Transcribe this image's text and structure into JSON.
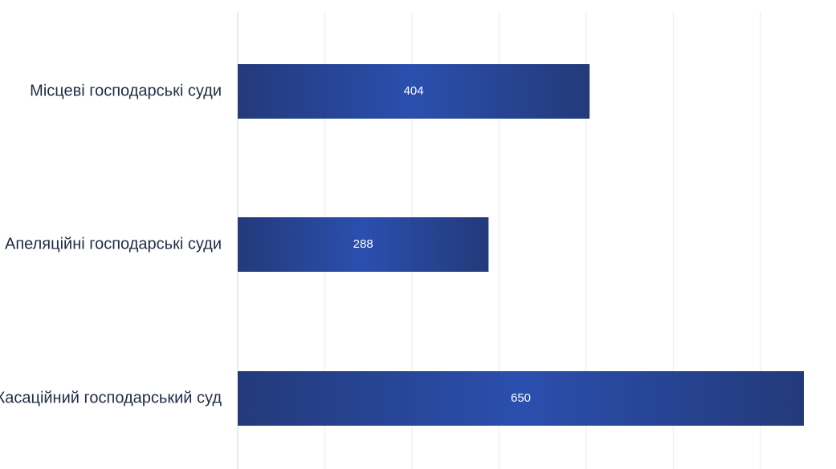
{
  "chart_data": {
    "type": "bar",
    "orientation": "horizontal",
    "categories": [
      "Місцеві господарські суди",
      "Апеляційні господарські суди",
      "Касаційний господарський суд"
    ],
    "values": [
      404,
      288,
      650
    ],
    "data_labels": [
      "404",
      "288",
      "650"
    ],
    "xlim": [
      0,
      700
    ],
    "grid": true,
    "legend": "none",
    "colors": {
      "bar_edge": "#233a7a",
      "bar_center": "#2b4fae",
      "grid": "#ececec",
      "axis": "#d6d6d6",
      "category_text": "#1f2a44",
      "value_text": "#ffffff"
    }
  }
}
